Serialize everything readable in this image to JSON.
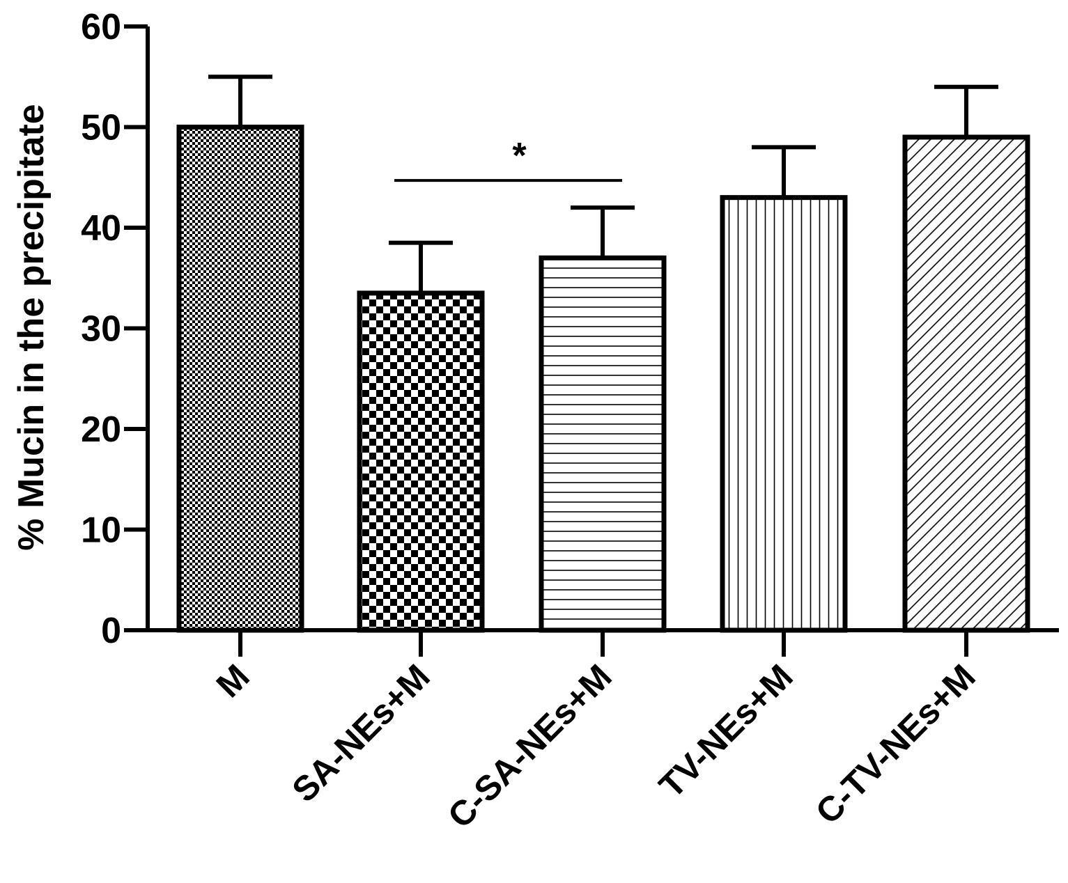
{
  "chart_data": {
    "type": "bar",
    "title": "",
    "xlabel": "",
    "ylabel": "% Mucin in the precipitate",
    "ylim": [
      0,
      60
    ],
    "yticks": [
      0,
      10,
      20,
      30,
      40,
      50,
      60
    ],
    "grid": false,
    "categories": [
      "M",
      "SA-NEs+M",
      "C-SA-NEs+M",
      "TV-NEs+M",
      "C-TV-NEs+M"
    ],
    "values": [
      50,
      33.5,
      37,
      43,
      49
    ],
    "errors": [
      5,
      5,
      5,
      5,
      5
    ],
    "patterns": [
      "fine-checker",
      "coarse-checker",
      "horizontal-lines",
      "vertical-lines",
      "diagonal-lines"
    ],
    "significance": [
      {
        "from": "SA-NEs+M",
        "to": "C-SA-NEs+M",
        "label": "*",
        "y": 44.7
      }
    ]
  }
}
